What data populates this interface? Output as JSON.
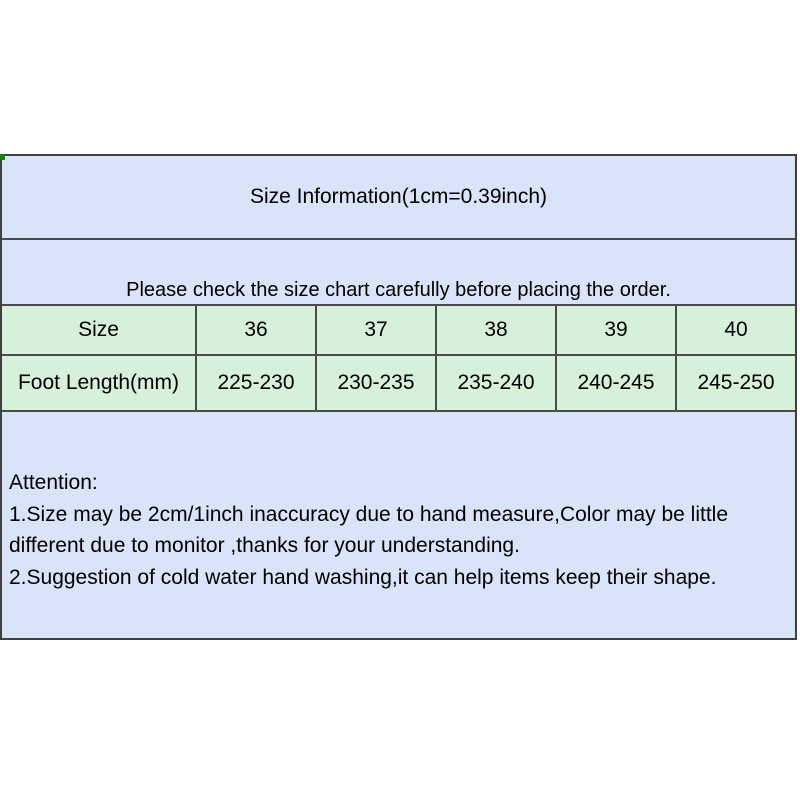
{
  "size_chart": {
    "title": "Size Information(1cm=0.39inch)",
    "notice": "Please check the size chart carefully before placing the order.",
    "table": {
      "row_headers": [
        "Size",
        "Foot Length(mm)"
      ],
      "sizes": [
        "36",
        "37",
        "38",
        "39",
        "40"
      ],
      "foot_lengths": [
        "225-230",
        "230-235",
        "235-240",
        "240-245",
        "245-250"
      ]
    },
    "attention": {
      "heading": "Attention:",
      "lines": [
        "1.Size may be 2cm/1inch inaccuracy due to hand measure,Color may be little",
        "different due to monitor ,thanks for your understanding.",
        "2.Suggestion of cold water hand washing,it can help items keep their shape."
      ]
    },
    "colors": {
      "header_bg": "#dae4f8",
      "table_bg": "#d7f0da",
      "border": "#4a4a4a",
      "corner_mark": "#1e7e1e"
    }
  }
}
